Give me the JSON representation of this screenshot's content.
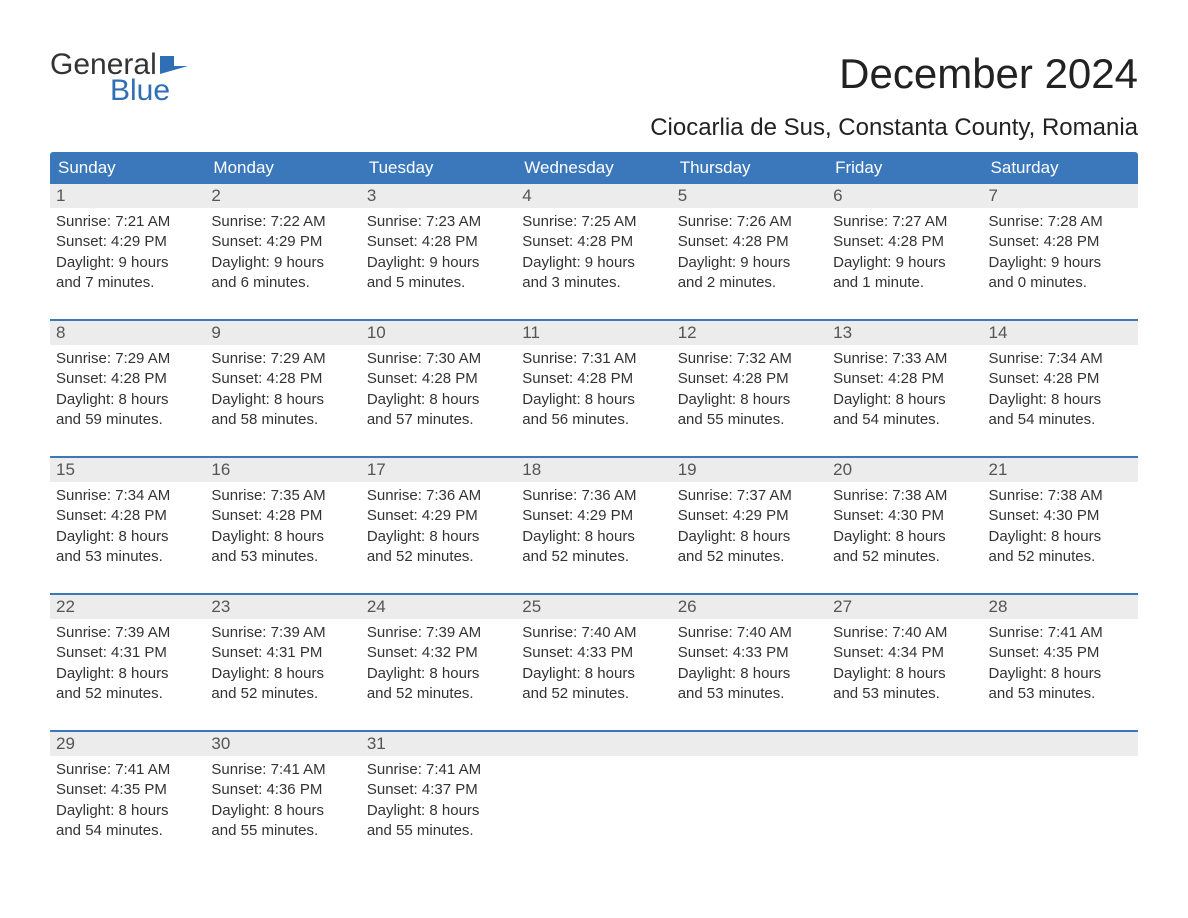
{
  "logo": {
    "word1": "General",
    "word2": "Blue"
  },
  "header": {
    "month_title": "December 2024",
    "location": "Ciocarlia de Sus, Constanta County, Romania"
  },
  "colors": {
    "header_bg": "#3a78bb",
    "header_text": "#ffffff",
    "daynum_bg": "#ececec",
    "daynum_text": "#555555",
    "body_text": "#333333",
    "week_divider": "#3a78bb",
    "logo_blue": "#2f6fb5",
    "page_bg": "#ffffff"
  },
  "day_names": [
    "Sunday",
    "Monday",
    "Tuesday",
    "Wednesday",
    "Thursday",
    "Friday",
    "Saturday"
  ],
  "weeks": [
    [
      {
        "n": "1",
        "sunrise": "Sunrise: 7:21 AM",
        "sunset": "Sunset: 4:29 PM",
        "dl1": "Daylight: 9 hours",
        "dl2": "and 7 minutes."
      },
      {
        "n": "2",
        "sunrise": "Sunrise: 7:22 AM",
        "sunset": "Sunset: 4:29 PM",
        "dl1": "Daylight: 9 hours",
        "dl2": "and 6 minutes."
      },
      {
        "n": "3",
        "sunrise": "Sunrise: 7:23 AM",
        "sunset": "Sunset: 4:28 PM",
        "dl1": "Daylight: 9 hours",
        "dl2": "and 5 minutes."
      },
      {
        "n": "4",
        "sunrise": "Sunrise: 7:25 AM",
        "sunset": "Sunset: 4:28 PM",
        "dl1": "Daylight: 9 hours",
        "dl2": "and 3 minutes."
      },
      {
        "n": "5",
        "sunrise": "Sunrise: 7:26 AM",
        "sunset": "Sunset: 4:28 PM",
        "dl1": "Daylight: 9 hours",
        "dl2": "and 2 minutes."
      },
      {
        "n": "6",
        "sunrise": "Sunrise: 7:27 AM",
        "sunset": "Sunset: 4:28 PM",
        "dl1": "Daylight: 9 hours",
        "dl2": "and 1 minute."
      },
      {
        "n": "7",
        "sunrise": "Sunrise: 7:28 AM",
        "sunset": "Sunset: 4:28 PM",
        "dl1": "Daylight: 9 hours",
        "dl2": "and 0 minutes."
      }
    ],
    [
      {
        "n": "8",
        "sunrise": "Sunrise: 7:29 AM",
        "sunset": "Sunset: 4:28 PM",
        "dl1": "Daylight: 8 hours",
        "dl2": "and 59 minutes."
      },
      {
        "n": "9",
        "sunrise": "Sunrise: 7:29 AM",
        "sunset": "Sunset: 4:28 PM",
        "dl1": "Daylight: 8 hours",
        "dl2": "and 58 minutes."
      },
      {
        "n": "10",
        "sunrise": "Sunrise: 7:30 AM",
        "sunset": "Sunset: 4:28 PM",
        "dl1": "Daylight: 8 hours",
        "dl2": "and 57 minutes."
      },
      {
        "n": "11",
        "sunrise": "Sunrise: 7:31 AM",
        "sunset": "Sunset: 4:28 PM",
        "dl1": "Daylight: 8 hours",
        "dl2": "and 56 minutes."
      },
      {
        "n": "12",
        "sunrise": "Sunrise: 7:32 AM",
        "sunset": "Sunset: 4:28 PM",
        "dl1": "Daylight: 8 hours",
        "dl2": "and 55 minutes."
      },
      {
        "n": "13",
        "sunrise": "Sunrise: 7:33 AM",
        "sunset": "Sunset: 4:28 PM",
        "dl1": "Daylight: 8 hours",
        "dl2": "and 54 minutes."
      },
      {
        "n": "14",
        "sunrise": "Sunrise: 7:34 AM",
        "sunset": "Sunset: 4:28 PM",
        "dl1": "Daylight: 8 hours",
        "dl2": "and 54 minutes."
      }
    ],
    [
      {
        "n": "15",
        "sunrise": "Sunrise: 7:34 AM",
        "sunset": "Sunset: 4:28 PM",
        "dl1": "Daylight: 8 hours",
        "dl2": "and 53 minutes."
      },
      {
        "n": "16",
        "sunrise": "Sunrise: 7:35 AM",
        "sunset": "Sunset: 4:28 PM",
        "dl1": "Daylight: 8 hours",
        "dl2": "and 53 minutes."
      },
      {
        "n": "17",
        "sunrise": "Sunrise: 7:36 AM",
        "sunset": "Sunset: 4:29 PM",
        "dl1": "Daylight: 8 hours",
        "dl2": "and 52 minutes."
      },
      {
        "n": "18",
        "sunrise": "Sunrise: 7:36 AM",
        "sunset": "Sunset: 4:29 PM",
        "dl1": "Daylight: 8 hours",
        "dl2": "and 52 minutes."
      },
      {
        "n": "19",
        "sunrise": "Sunrise: 7:37 AM",
        "sunset": "Sunset: 4:29 PM",
        "dl1": "Daylight: 8 hours",
        "dl2": "and 52 minutes."
      },
      {
        "n": "20",
        "sunrise": "Sunrise: 7:38 AM",
        "sunset": "Sunset: 4:30 PM",
        "dl1": "Daylight: 8 hours",
        "dl2": "and 52 minutes."
      },
      {
        "n": "21",
        "sunrise": "Sunrise: 7:38 AM",
        "sunset": "Sunset: 4:30 PM",
        "dl1": "Daylight: 8 hours",
        "dl2": "and 52 minutes."
      }
    ],
    [
      {
        "n": "22",
        "sunrise": "Sunrise: 7:39 AM",
        "sunset": "Sunset: 4:31 PM",
        "dl1": "Daylight: 8 hours",
        "dl2": "and 52 minutes."
      },
      {
        "n": "23",
        "sunrise": "Sunrise: 7:39 AM",
        "sunset": "Sunset: 4:31 PM",
        "dl1": "Daylight: 8 hours",
        "dl2": "and 52 minutes."
      },
      {
        "n": "24",
        "sunrise": "Sunrise: 7:39 AM",
        "sunset": "Sunset: 4:32 PM",
        "dl1": "Daylight: 8 hours",
        "dl2": "and 52 minutes."
      },
      {
        "n": "25",
        "sunrise": "Sunrise: 7:40 AM",
        "sunset": "Sunset: 4:33 PM",
        "dl1": "Daylight: 8 hours",
        "dl2": "and 52 minutes."
      },
      {
        "n": "26",
        "sunrise": "Sunrise: 7:40 AM",
        "sunset": "Sunset: 4:33 PM",
        "dl1": "Daylight: 8 hours",
        "dl2": "and 53 minutes."
      },
      {
        "n": "27",
        "sunrise": "Sunrise: 7:40 AM",
        "sunset": "Sunset: 4:34 PM",
        "dl1": "Daylight: 8 hours",
        "dl2": "and 53 minutes."
      },
      {
        "n": "28",
        "sunrise": "Sunrise: 7:41 AM",
        "sunset": "Sunset: 4:35 PM",
        "dl1": "Daylight: 8 hours",
        "dl2": "and 53 minutes."
      }
    ],
    [
      {
        "n": "29",
        "sunrise": "Sunrise: 7:41 AM",
        "sunset": "Sunset: 4:35 PM",
        "dl1": "Daylight: 8 hours",
        "dl2": "and 54 minutes."
      },
      {
        "n": "30",
        "sunrise": "Sunrise: 7:41 AM",
        "sunset": "Sunset: 4:36 PM",
        "dl1": "Daylight: 8 hours",
        "dl2": "and 55 minutes."
      },
      {
        "n": "31",
        "sunrise": "Sunrise: 7:41 AM",
        "sunset": "Sunset: 4:37 PM",
        "dl1": "Daylight: 8 hours",
        "dl2": "and 55 minutes."
      },
      {
        "empty": true
      },
      {
        "empty": true
      },
      {
        "empty": true
      },
      {
        "empty": true
      }
    ]
  ]
}
